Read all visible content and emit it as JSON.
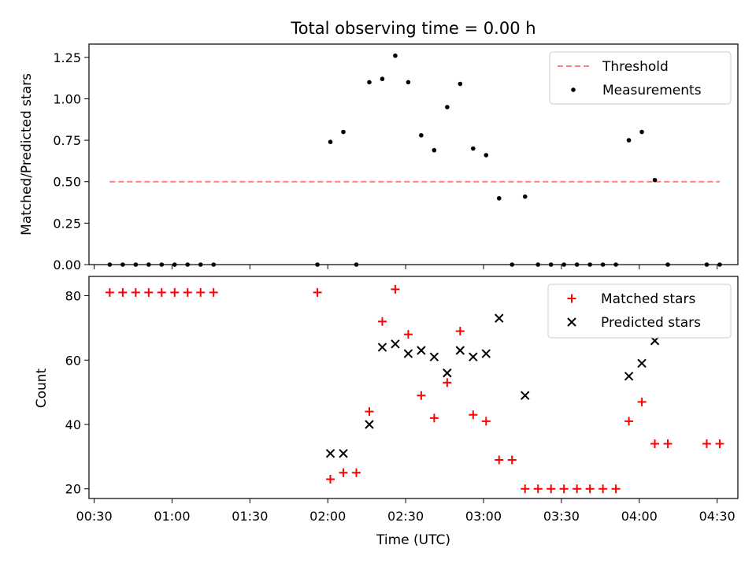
{
  "figure": {
    "title": "Total observing time = 0.00 h"
  },
  "chart_data": [
    {
      "type": "scatter",
      "ylabel": "Matched/Predicted stars",
      "xlabel": "",
      "xlim": [
        "00:28",
        "04:38"
      ],
      "ylim": [
        0,
        1.33
      ],
      "y_ticks": [
        0.0,
        0.25,
        0.5,
        0.75,
        1.0,
        1.25
      ],
      "y_tick_labels": [
        "0.00",
        "0.25",
        "0.50",
        "0.75",
        "1.00",
        "1.25"
      ],
      "grid": false,
      "legend_position": "top-right",
      "series": [
        {
          "name": "Threshold",
          "kind": "dashed-line",
          "color": "#ff7f7f",
          "x": [
            "00:36",
            "04:31"
          ],
          "y": [
            0.5,
            0.5
          ]
        },
        {
          "name": "Measurements",
          "kind": "dot",
          "color": "#000000",
          "x": [
            "00:36",
            "00:41",
            "00:46",
            "00:51",
            "00:56",
            "01:01",
            "01:06",
            "01:11",
            "01:16",
            "01:56",
            "02:01",
            "02:06",
            "02:11",
            "02:16",
            "02:21",
            "02:26",
            "02:31",
            "02:36",
            "02:41",
            "02:46",
            "02:51",
            "02:56",
            "03:01",
            "03:06",
            "03:11",
            "03:16",
            "03:21",
            "03:26",
            "03:31",
            "03:36",
            "03:41",
            "03:46",
            "03:51",
            "03:56",
            "04:01",
            "04:06",
            "04:11",
            "04:26",
            "04:31"
          ],
          "y": [
            0,
            0,
            0,
            0,
            0,
            0,
            0,
            0,
            0,
            0,
            0.74,
            0.8,
            0,
            1.1,
            1.12,
            1.26,
            1.1,
            0.78,
            0.69,
            0.95,
            1.09,
            0.7,
            0.66,
            0.4,
            0,
            0.41,
            0,
            0,
            0,
            0,
            0,
            0,
            0,
            0.75,
            0.8,
            0.51,
            0,
            0,
            0
          ]
        }
      ]
    },
    {
      "type": "scatter",
      "ylabel": "Count",
      "xlabel": "Time (UTC)",
      "xlim": [
        "00:28",
        "04:38"
      ],
      "ylim": [
        17,
        86
      ],
      "y_ticks": [
        20,
        40,
        60,
        80
      ],
      "y_tick_labels": [
        "20",
        "40",
        "60",
        "80"
      ],
      "x_ticks": [
        "00:30",
        "01:00",
        "01:30",
        "02:00",
        "02:30",
        "03:00",
        "03:30",
        "04:00",
        "04:30"
      ],
      "x_tick_labels": [
        "00:30",
        "01:00",
        "01:30",
        "02:00",
        "02:30",
        "03:00",
        "03:30",
        "04:00",
        "04:30"
      ],
      "grid": false,
      "legend_position": "top-right",
      "series": [
        {
          "name": "Matched stars",
          "kind": "plus",
          "color": "#ff0000",
          "x": [
            "00:36",
            "00:41",
            "00:46",
            "00:51",
            "00:56",
            "01:01",
            "01:06",
            "01:11",
            "01:16",
            "01:56",
            "02:01",
            "02:06",
            "02:11",
            "02:16",
            "02:21",
            "02:26",
            "02:31",
            "02:36",
            "02:41",
            "02:46",
            "02:51",
            "02:56",
            "03:01",
            "03:06",
            "03:11",
            "03:16",
            "03:21",
            "03:26",
            "03:31",
            "03:36",
            "03:41",
            "03:46",
            "03:51",
            "03:56",
            "04:01",
            "04:06",
            "04:11",
            "04:26",
            "04:31"
          ],
          "y": [
            81,
            81,
            81,
            81,
            81,
            81,
            81,
            81,
            81,
            81,
            23,
            25,
            25,
            44,
            72,
            82,
            68,
            49,
            42,
            53,
            69,
            43,
            41,
            29,
            29,
            20,
            20,
            20,
            20,
            20,
            20,
            20,
            20,
            41,
            47,
            34,
            34,
            34,
            34
          ]
        },
        {
          "name": "Predicted stars",
          "kind": "x",
          "color": "#000000",
          "x": [
            "02:01",
            "02:06",
            "02:16",
            "02:21",
            "02:26",
            "02:31",
            "02:36",
            "02:41",
            "02:46",
            "02:51",
            "02:56",
            "03:01",
            "03:06",
            "03:16",
            "03:56",
            "04:01",
            "04:06"
          ],
          "y": [
            31,
            31,
            40,
            64,
            65,
            62,
            63,
            61,
            56,
            63,
            61,
            62,
            73,
            49,
            55,
            59,
            66
          ]
        }
      ]
    }
  ]
}
